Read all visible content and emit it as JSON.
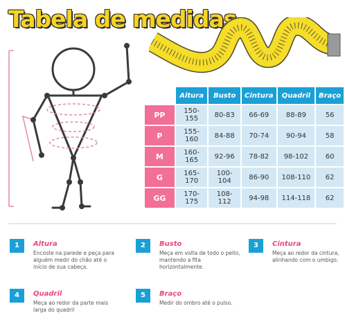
{
  "title": "Tabela de medidas",
  "table": {
    "headers": [
      "Altura",
      "Busto",
      "Cintura",
      "Quadril",
      "Braço"
    ],
    "rows": [
      {
        "size": "PP",
        "cells": [
          "150-155",
          "80-83",
          "66-69",
          "88-89",
          "56"
        ]
      },
      {
        "size": "P",
        "cells": [
          "155-160",
          "84-88",
          "70-74",
          "90-94",
          "58"
        ]
      },
      {
        "size": "M",
        "cells": [
          "160-165",
          "92-96",
          "78-82",
          "98-102",
          "60"
        ]
      },
      {
        "size": "G",
        "cells": [
          "165-170",
          "100-104",
          "86-90",
          "108-110",
          "62"
        ]
      },
      {
        "size": "GG",
        "cells": [
          "170-175",
          "108-112",
          "94-98",
          "114-118",
          "62"
        ]
      }
    ]
  },
  "steps": [
    {
      "number": "1",
      "label": "Altura",
      "description": "Encoste na parede e peça para alguém medir do chão até o início de sua cabeça."
    },
    {
      "number": "2",
      "label": "Busto",
      "description": "Meça em volta de todo o peito, mantendo a fita horizontalmente."
    },
    {
      "number": "3",
      "label": "Cintura",
      "description": "Meça ao redor da cintura, alinhando com o umbigo."
    },
    {
      "number": "4",
      "label": "Quadril",
      "description": "Meça ao redor da parte mais larga do quadril"
    },
    {
      "number": "5",
      "label": "Braço",
      "description": "Medir do ombro até o pulso."
    }
  ],
  "colors": {
    "title": "#f7d324",
    "header": "#1aa0d6",
    "size_cell": "#f26f97",
    "data_cell": "#d3e8f4",
    "step_label": "#e6487a",
    "tape": "#f5dd2a"
  }
}
